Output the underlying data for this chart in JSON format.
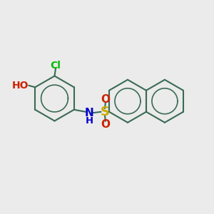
{
  "background_color": "#ebebeb",
  "bond_color": "#3a6b55",
  "cl_color": "#00bb00",
  "ho_color": "#cc2200",
  "nh_color": "#0000cc",
  "s_color": "#ccaa00",
  "o_color": "#cc2200",
  "lw": 1.5,
  "figsize": [
    3.0,
    3.0
  ],
  "dpi": 100,
  "xlim": [
    0,
    10
  ],
  "ylim": [
    0,
    10
  ]
}
